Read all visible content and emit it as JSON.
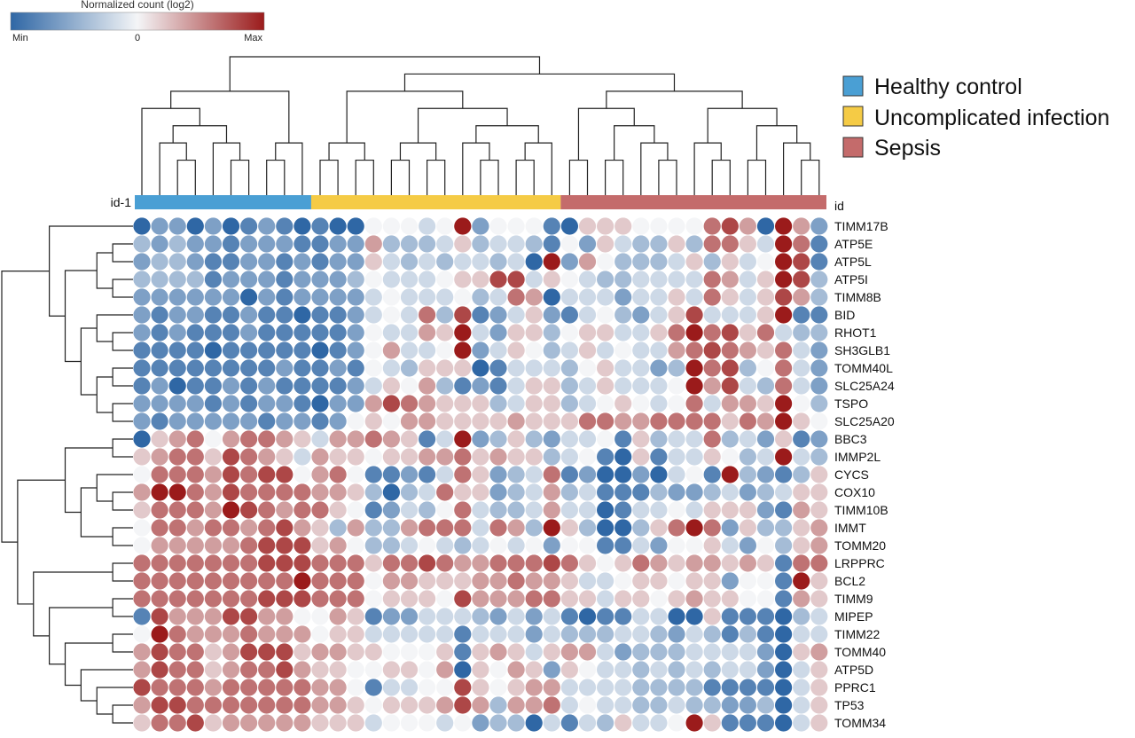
{
  "chart_data": {
    "type": "heatmap",
    "title": "",
    "colorbar": {
      "title": "Normalized count (log2)",
      "min_label": "Min",
      "mid_label": "0",
      "max_label": "Max",
      "colors": [
        "#2f67a5",
        "#f4f5f7",
        "#9b1b1b"
      ]
    },
    "column_annotation": {
      "left_label": "id-1",
      "right_label": "id",
      "groups": [
        {
          "name": "Healthy control",
          "count": 10,
          "color": "#4a9fd4"
        },
        {
          "name": "Uncomplicated infection",
          "count": 14,
          "color": "#f5cb45"
        },
        {
          "name": "Sepsis",
          "count": 15,
          "color": "#c46b6b"
        }
      ]
    },
    "legend": {
      "placement": "top-right",
      "items": [
        "Healthy control",
        "Uncomplicated infection",
        "Sepsis"
      ]
    },
    "rows": [
      "TIMM17B",
      "ATP5E",
      "ATP5L",
      "ATP5I",
      "TIMM8B",
      "BID",
      "RHOT1",
      "SH3GLB1",
      "TOMM40L",
      "SLC25A24",
      "TSPO",
      "SLC25A20",
      "BBC3",
      "IMMP2L",
      "CYCS",
      "COX10",
      "TIMM10B",
      "IMMT",
      "TOMM20",
      "LRPPRC",
      "BCL2",
      "TIMM9",
      "MIPEP",
      "TIMM22",
      "TOMM40",
      "ATP5D",
      "PPRC1",
      "TP53",
      "TOMM34"
    ],
    "n_columns": 39,
    "value_scale": "integer level from -5 (Min, dark blue) through 0 (white) to 5 (Max, dark red)",
    "values": [
      "-5,-3,-3,-5,-3,-5,-4,-3,-4,-5,-4,-5,-5,0,0,0,-1,0,5,-3,0,0,0,-4,-5,1,1,1,0,0,0,0,3,4,2,-5,5,2,-3",
      "-2,-3,-2,-3,-3,-4,-3,-3,-3,-4,-4,-3,-3,2,-2,-2,-2,-1,1,-2,-1,-1,-2,-4,0,-3,1,-1,-2,-2,1,-2,3,3,1,-1,5,3,-4",
      "-3,-2,-2,-3,-4,-4,-3,-3,-4,-3,-4,-3,-3,1,-1,-2,-1,-2,-1,-1,-2,-1,-5,5,-3,2,0,-2,-2,-2,-1,1,-2,1,-1,0,5,4,-4",
      "-2,-2,-2,-2,-4,-3,-3,-3,-4,-3,-3,-3,-2,0,-1,-1,-1,0,1,1,4,4,-1,1,0,-1,-2,-2,-1,-1,-1,-1,3,2,-1,1,5,4,-2",
      "-3,-3,-3,-3,-3,-3,-5,-3,-4,-3,-3,-3,-3,-1,0,-1,-1,-1,0,-2,-1,3,2,-5,-1,-1,-1,-3,-1,-1,1,-1,3,1,-1,1,4,2,-2",
      "-3,-4,-3,-3,-4,-4,-3,-4,-4,-5,-4,-4,-3,-1,0,-1,3,-2,4,-4,-3,-1,1,-3,-4,-1,0,-2,-3,-1,1,4,-1,-1,-1,1,5,-4,-4",
      "-3,-4,-3,-4,-4,-4,-3,-4,-4,-4,-4,-4,-3,0,-1,-1,2,1,5,-1,-3,1,1,-2,0,1,1,-1,-1,1,3,5,3,4,1,3,-1,-2,-2",
      "-4,-4,-4,-4,-5,-4,-4,-4,-4,-4,-5,-4,-3,0,2,-1,-1,0,5,-3,-1,1,0,-2,-1,1,-1,0,-1,-1,2,3,4,3,2,1,3,-1,-3",
      "-4,-4,-4,-4,-4,-4,-4,-4,-3,-4,-4,-3,-4,0,-1,-2,1,1,1,-5,-4,-1,-1,-1,-2,0,1,-1,-1,-3,-2,5,3,4,-2,0,3,-1,-3",
      "-4,-3,-5,-4,-4,-3,-4,-3,-4,-4,-4,-4,-3,-1,1,0,2,-2,-4,-3,-4,-1,1,1,-2,-1,1,-1,-1,-1,0,5,2,4,-1,-2,3,-1,-3",
      "-3,-3,-3,-3,-4,-3,-4,-3,-3,-4,-5,-3,-3,2,4,3,2,1,1,1,-2,-1,1,1,-2,-1,0,1,0,-1,0,3,-1,2,2,1,5,0,-2",
      "-3,-4,-3,-3,-3,-3,-3,-4,-3,-3,-4,-3,0,1,0,2,2,1,1,1,1,2,1,1,1,3,3,2,2,3,3,3,3,1,3,2,5,1,0",
      "-5,1,2,3,0,2,3,3,2,1,-1,2,2,3,2,1,-4,-1,5,-3,-2,1,-2,-3,-1,-1,0,-4,1,-2,-1,-1,3,-2,-1,-3,1,-4,-3",
      "1,2,3,3,1,4,3,2,1,-1,2,1,1,0,1,1,2,2,3,1,2,1,1,-2,-1,0,-4,-5,1,-4,-1,-1,1,0,-2,-1,5,-1,-2",
      "0,3,3,3,2,4,3,4,4,0,2,3,0,-4,-4,-3,-4,-1,3,1,-3,-2,-1,3,-4,-3,-5,-5,-3,-5,-1,0,-4,5,-2,-3,-4,-2,1",
      "2,5,5,3,2,4,3,3,3,3,2,2,1,-2,-5,-2,-1,3,1,1,-3,-2,-1,2,-2,-1,-4,-4,-4,-2,-3,-3,-2,-1,-3,-2,-1,1,1",
      "1,3,3,3,2,5,4,3,2,3,3,1,0,-4,-3,-1,-2,0,3,-1,-2,-2,-1,2,-1,-1,-5,-4,-1,-1,0,-1,1,1,1,-3,-4,2,1",
      "0,3,3,2,3,3,2,3,4,2,1,-2,2,-2,-2,2,3,3,3,-1,3,2,-2,5,1,-2,-5,-5,-2,1,3,5,3,-3,1,-2,-2,1,2",
      "0,2,2,2,2,2,3,4,4,4,1,2,0,-2,-2,-1,0,-1,-2,-1,0,-1,0,-3,0,0,-4,-4,-1,-3,0,0,1,-1,-3,0,-2,1,2",
      "3,3,3,3,3,3,3,4,4,4,3,3,3,1,3,3,4,3,2,2,3,3,3,4,3,1,0,1,3,2,1,2,2,1,2,1,-4,3,3",
      "3,3,3,3,3,3,3,3,3,5,3,3,3,0,2,2,1,1,1,2,2,3,2,2,1,-1,-1,0,1,1,0,1,1,-3,0,0,-4,5,1",
      "3,3,3,3,3,3,3,4,4,4,3,3,3,0,1,1,1,0,4,2,2,2,3,3,1,1,-1,1,1,0,1,2,1,1,0,0,-4,2,1",
      "-4,4,2,2,2,4,4,2,2,0,0,2,1,-4,-3,-3,-1,-1,-1,-2,-3,-1,-3,-1,-4,-5,-4,-4,-1,-1,-5,-5,1,-4,-4,-4,-5,-2,-1",
      "0,5,3,2,2,2,3,2,2,2,0,1,1,-1,-1,-1,-1,-1,-4,-1,-1,-1,-3,-1,-2,-2,-2,-1,-1,-2,-3,-1,-2,-4,-2,-4,-5,-1,-1",
      "2,4,3,3,1,2,4,4,4,1,2,2,1,1,0,0,0,1,-4,1,2,1,-1,1,2,2,-1,-3,-2,-2,-2,-1,-1,-1,-1,-3,-5,1,2",
      "2,4,3,3,1,2,3,3,4,2,1,1,0,0,1,1,0,2,-5,1,0,2,1,-3,1,0,-1,-1,-2,-1,-2,-1,-2,-1,-1,-3,-5,-1,1",
      "4,3,3,3,2,3,3,3,3,3,2,2,0,-4,-1,-1,0,0,4,1,0,1,2,2,-1,-1,-1,-1,-2,-2,-2,-2,-4,-4,-4,-4,-5,-1,1",
      "2,4,4,3,3,3,3,3,3,3,2,2,1,0,1,1,1,2,4,2,-2,2,2,3,-1,0,-1,-1,-2,-2,-1,-2,-2,-3,-3,-2,-5,-1,1",
      "1,3,3,4,1,2,2,2,2,2,1,1,1,-1,0,0,0,-1,0,-3,-2,-2,-5,-1,-4,-1,-2,1,-1,-1,0,5,1,-4,-4,-4,-5,-1,1"
    ]
  }
}
